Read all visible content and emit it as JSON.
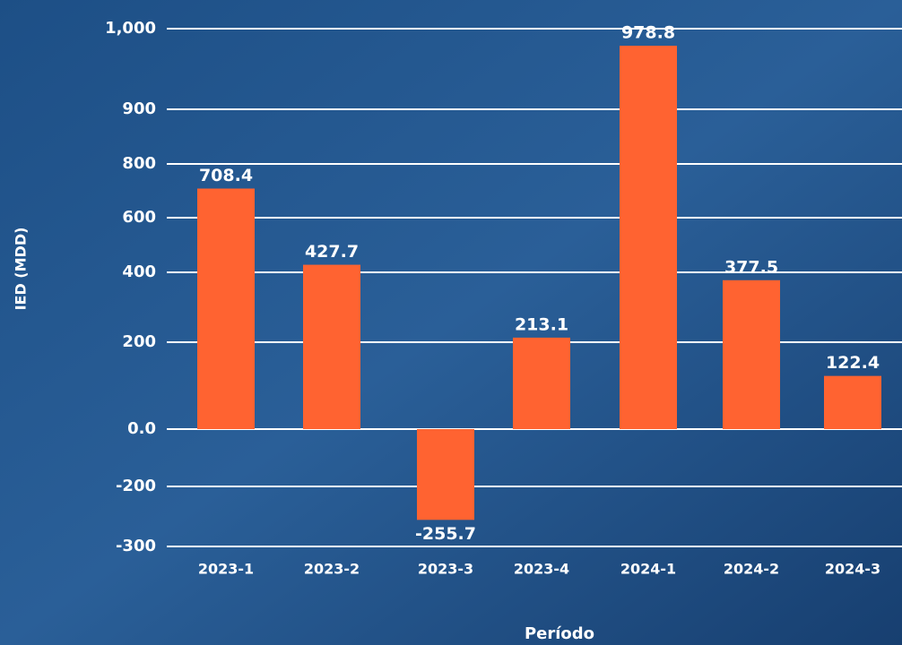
{
  "chart_data": {
    "type": "bar",
    "y_label": "IED (MDD)",
    "x_label": "Período",
    "categories": [
      "2023-1",
      "2023-2",
      "2023-3",
      "2023-4",
      "2024-1",
      "2024-2",
      "2024-3"
    ],
    "values": [
      708.4,
      427.7,
      -255.7,
      213.1,
      978.8,
      377.5,
      122.4
    ],
    "color": "#ff6331",
    "ylim": [
      -300,
      1000
    ],
    "yticks": [
      {
        "value": 1000,
        "label": "1,000"
      },
      900,
      800,
      600,
      400,
      200,
      {
        "value": 0,
        "label": "0.0"
      },
      -200,
      -300
    ],
    "grid": true
  }
}
